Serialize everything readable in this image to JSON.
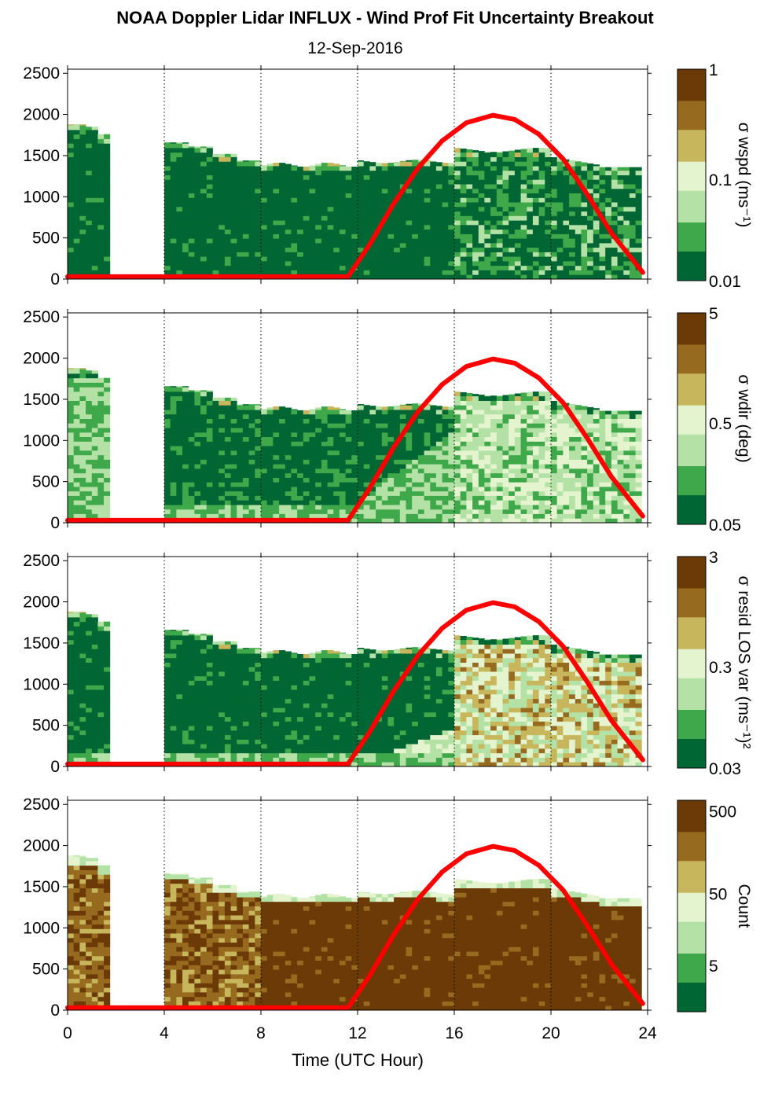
{
  "title": "NOAA Doppler Lidar INFLUX - Wind Prof Fit Uncertainty Breakout",
  "subtitle": "12-Sep-2016",
  "x_axis": {
    "label": "Time (UTC Hour)",
    "ticks": [
      "0",
      "4",
      "8",
      "12",
      "16",
      "20",
      "24"
    ],
    "range": [
      0,
      24
    ],
    "dotted_gridlines_at": [
      4,
      8,
      12,
      16,
      20,
      24
    ]
  },
  "y_axis": {
    "ticks": [
      "0",
      "500",
      "1000",
      "1500",
      "2000",
      "2500"
    ],
    "range": [
      0,
      2550
    ]
  },
  "colors": {
    "darkgreen": "#006633",
    "green": "#3fa84a",
    "lightgreen": "#b4e2a6",
    "pale": "#e4f4cf",
    "tan": "#c8b65c",
    "brown": "#966a1f",
    "darkbrown": "#6b3a06",
    "curve": "#ff0000"
  },
  "chart_data": [
    {
      "type": "heatmap",
      "panel": "sigma-wspd",
      "colorbar_label": "σ wspd (ms⁻¹)",
      "colorbar_ticks": [
        "0.01",
        "0.1",
        "1"
      ],
      "colorbar_scale": "log",
      "x_data_coverage_hours": [
        [
          0.0,
          1.7
        ],
        [
          4.1,
          23.8
        ]
      ],
      "approx_data_top_m": {
        "0-1.7h": 1850,
        "4-8h": 1600,
        "8-16h": 1400,
        "16-20h": 1580,
        "20-24h": 1350
      }
    },
    {
      "type": "heatmap",
      "panel": "sigma-wdir",
      "colorbar_label": "σ wdir (deg)",
      "colorbar_ticks": [
        "0.05",
        "0.5",
        "5"
      ],
      "colorbar_scale": "log"
    },
    {
      "type": "heatmap",
      "panel": "sigma-resid-los-var",
      "colorbar_label": "σ resid LOS var (ms⁻¹)²",
      "colorbar_ticks": [
        "0.03",
        "0.3",
        "3"
      ],
      "colorbar_scale": "log"
    },
    {
      "type": "heatmap",
      "panel": "count",
      "colorbar_label": "Count",
      "colorbar_ticks": [
        "5",
        "50",
        "500"
      ],
      "colorbar_scale": "log"
    }
  ],
  "overlay_curve": {
    "description": "red line (sun elevation)",
    "x_hours": [
      0.0,
      1.3,
      4.1,
      11.6,
      12.5,
      13.5,
      14.5,
      15.5,
      16.5,
      17.6,
      18.5,
      19.5,
      20.5,
      21.5,
      22.5,
      23.8
    ],
    "y_m": [
      30,
      30,
      30,
      30,
      420,
      920,
      1350,
      1680,
      1900,
      1990,
      1940,
      1760,
      1460,
      1030,
      560,
      80
    ]
  }
}
